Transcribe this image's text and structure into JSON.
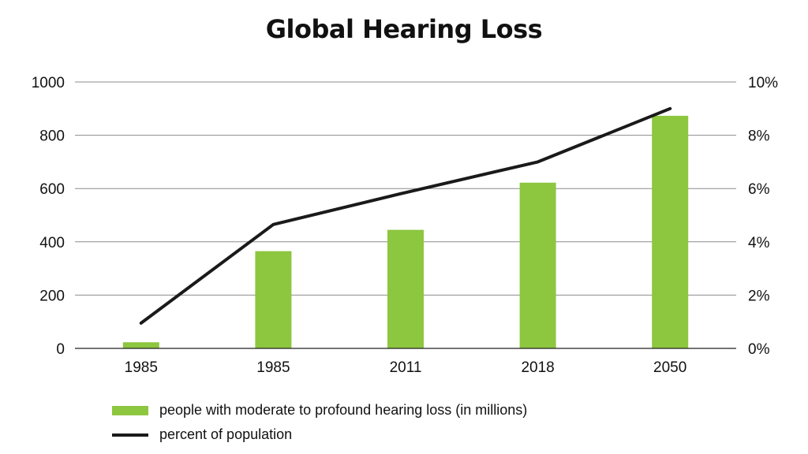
{
  "colors": {
    "bar": "#8dc63f",
    "line": "#1a1a1a",
    "grid": "#8c8c8c"
  },
  "chart_data": {
    "type": "bar",
    "title": "Global Hearing Loss",
    "categories": [
      "1985",
      "1985",
      "2011",
      "2018",
      "2050"
    ],
    "series": [
      {
        "name": "people with moderate to profound hearing loss (in millions)",
        "type": "bar",
        "axis": "left",
        "values": [
          23,
          365,
          445,
          622,
          873
        ]
      },
      {
        "name": "percent of population",
        "type": "line",
        "axis": "right",
        "values": [
          0.95,
          4.65,
          5.85,
          7.0,
          9.0
        ]
      }
    ],
    "y_left": {
      "lim": [
        0,
        1000
      ],
      "ticks": [
        0,
        200,
        400,
        600,
        800,
        1000
      ],
      "tick_labels": [
        "0",
        "200",
        "400",
        "600",
        "800",
        "1000"
      ]
    },
    "y_right": {
      "lim": [
        0,
        10
      ],
      "ticks": [
        0,
        2,
        4,
        6,
        8,
        10
      ],
      "tick_labels": [
        "0%",
        "2%",
        "4%",
        "6%",
        "8%",
        "10%"
      ]
    },
    "grid": true,
    "legend_position": "bottom-left"
  }
}
